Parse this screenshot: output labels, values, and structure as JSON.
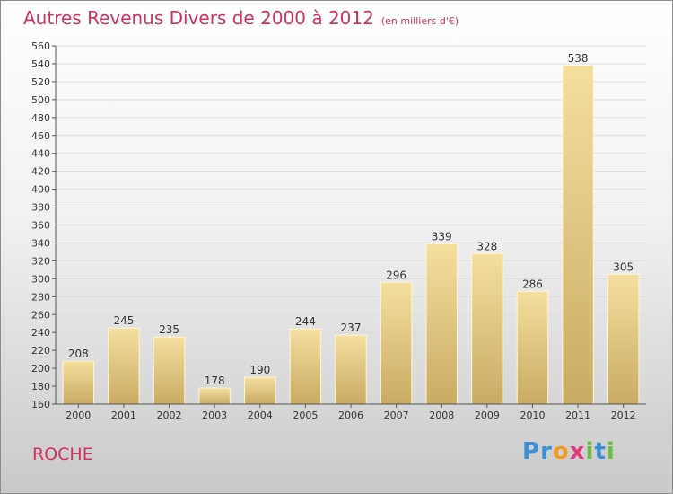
{
  "chart_data": {
    "type": "bar",
    "title": "Autres Revenus Divers de 2000 à 2012",
    "subtitle": "(en milliers d'€)",
    "categories": [
      "2000",
      "2001",
      "2002",
      "2003",
      "2004",
      "2005",
      "2006",
      "2007",
      "2008",
      "2009",
      "2010",
      "2011",
      "2012"
    ],
    "values": [
      208,
      245,
      235,
      178,
      190,
      244,
      237,
      296,
      339,
      328,
      286,
      538,
      305
    ],
    "xlabel": "",
    "ylabel": "",
    "ylim": [
      160,
      560
    ],
    "yticks": [
      160,
      180,
      200,
      220,
      240,
      260,
      280,
      300,
      320,
      340,
      360,
      380,
      400,
      420,
      440,
      460,
      480,
      500,
      520,
      540,
      560
    ],
    "grid": true,
    "legend": "none",
    "colors": {
      "bar_top": "#f5df9f",
      "bar_bottom": "#c9ab63",
      "title": "#d1315f",
      "grid": "#dcdcdc"
    }
  },
  "commune": "ROCHE",
  "logo": {
    "text": "Proxiti",
    "letters": [
      {
        "ch": "P",
        "color": "#3a8fd6"
      },
      {
        "ch": "r",
        "color": "#3a8fd6"
      },
      {
        "ch": "o",
        "color": "#f29a1f"
      },
      {
        "ch": "x",
        "color": "#e23a7b"
      },
      {
        "ch": "i",
        "color": "#6cbf3d"
      },
      {
        "ch": "t",
        "color": "#3a8fd6"
      },
      {
        "ch": "i",
        "color": "#6cbf3d"
      }
    ]
  }
}
